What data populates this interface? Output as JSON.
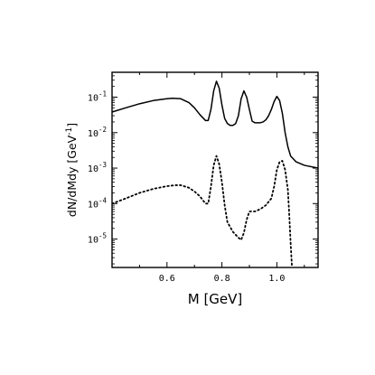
{
  "chart_data": {
    "type": "line",
    "xlabel": "M  [GeV]",
    "ylabel": "dN/dMdy  [GeV",
    "ylabel_superscript": "-1",
    "ylabel_close": "]",
    "xlim": [
      0.4,
      1.15
    ],
    "ylim_log10": [
      -5.8,
      -0.3
    ],
    "y_scale": "log",
    "grid": false,
    "legend": "none",
    "x_ticks": [
      {
        "value": 0.6,
        "label": "0.6"
      },
      {
        "value": 0.8,
        "label": "0.8"
      },
      {
        "value": 1.0,
        "label": "1.0"
      }
    ],
    "x_minor_ticks": [
      0.5,
      0.7,
      0.9,
      1.1
    ],
    "y_ticks": [
      {
        "value": 0.1,
        "mantissa": "10",
        "exponent": "-1"
      },
      {
        "value": 0.01,
        "mantissa": "10",
        "exponent": "-2"
      },
      {
        "value": 0.001,
        "mantissa": "10",
        "exponent": "-3"
      },
      {
        "value": 0.0001,
        "mantissa": "10",
        "exponent": "-4"
      },
      {
        "value": 1e-05,
        "mantissa": "10",
        "exponent": "-5"
      }
    ],
    "series": [
      {
        "style": "solid",
        "color": "#000000",
        "x": [
          0.4,
          0.45,
          0.5,
          0.55,
          0.6,
          0.62,
          0.65,
          0.68,
          0.7,
          0.72,
          0.74,
          0.75,
          0.76,
          0.77,
          0.78,
          0.79,
          0.8,
          0.81,
          0.82,
          0.83,
          0.84,
          0.85,
          0.86,
          0.87,
          0.88,
          0.89,
          0.9,
          0.91,
          0.92,
          0.93,
          0.94,
          0.95,
          0.96,
          0.97,
          0.98,
          0.99,
          1.0,
          1.01,
          1.02,
          1.03,
          1.04,
          1.05,
          1.07,
          1.1,
          1.15
        ],
        "y": [
          0.038,
          0.05,
          0.065,
          0.08,
          0.09,
          0.093,
          0.09,
          0.07,
          0.05,
          0.032,
          0.022,
          0.022,
          0.045,
          0.15,
          0.28,
          0.18,
          0.06,
          0.025,
          0.018,
          0.016,
          0.016,
          0.018,
          0.03,
          0.09,
          0.15,
          0.1,
          0.045,
          0.021,
          0.019,
          0.019,
          0.019,
          0.02,
          0.023,
          0.03,
          0.045,
          0.075,
          0.105,
          0.08,
          0.035,
          0.01,
          0.004,
          0.0022,
          0.0015,
          0.0012,
          0.001
        ]
      },
      {
        "style": "dotted",
        "color": "#000000",
        "x": [
          0.4,
          0.45,
          0.5,
          0.55,
          0.6,
          0.63,
          0.65,
          0.68,
          0.7,
          0.72,
          0.74,
          0.75,
          0.76,
          0.77,
          0.78,
          0.79,
          0.8,
          0.81,
          0.82,
          0.84,
          0.86,
          0.87,
          0.88,
          0.89,
          0.9,
          0.92,
          0.94,
          0.96,
          0.98,
          0.99,
          1.0,
          1.01,
          1.02,
          1.03,
          1.04,
          1.045,
          1.05,
          1.055
        ],
        "y": [
          0.0001,
          0.00014,
          0.0002,
          0.00026,
          0.00031,
          0.00033,
          0.00033,
          0.00028,
          0.00022,
          0.00016,
          0.0001,
          0.0001,
          0.0003,
          0.0012,
          0.0022,
          0.0013,
          0.0004,
          9e-05,
          3e-05,
          1.6e-05,
          1.1e-05,
          9.5e-06,
          1.5e-05,
          3.5e-05,
          6e-05,
          6e-05,
          7e-05,
          9e-05,
          0.00014,
          0.0003,
          0.0009,
          0.0015,
          0.0016,
          0.0009,
          0.00025,
          5e-05,
          8e-06,
          1.6e-06
        ]
      }
    ]
  }
}
